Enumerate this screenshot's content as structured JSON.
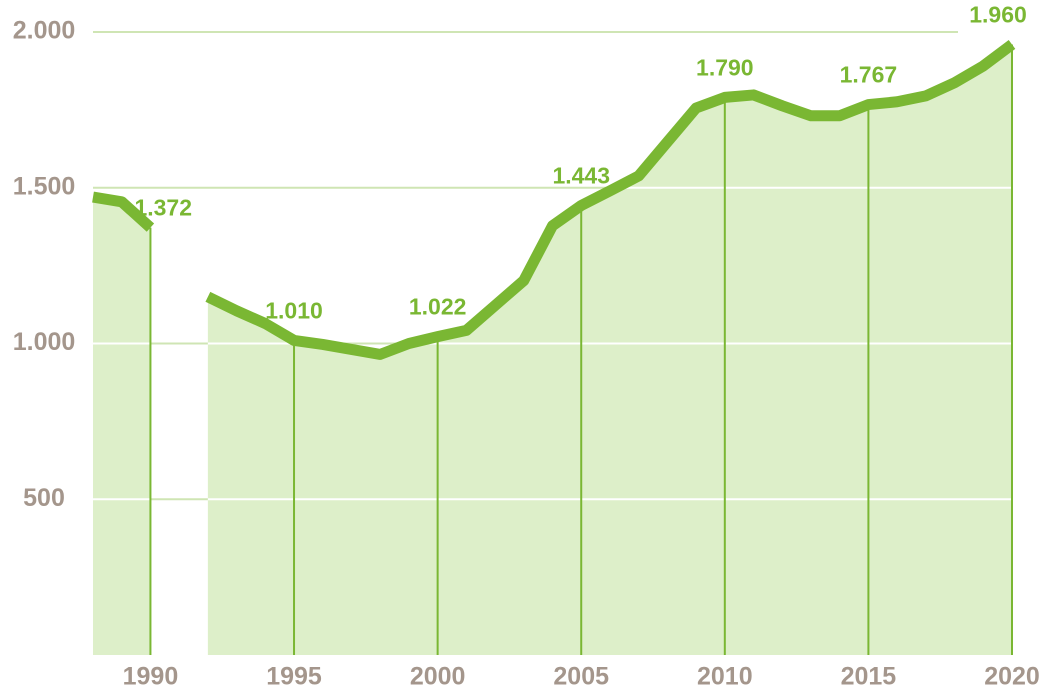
{
  "chart_data": {
    "type": "line",
    "x": [
      1988,
      1989,
      1990,
      1991,
      1992,
      1993,
      1994,
      1995,
      1996,
      1997,
      1998,
      1999,
      2000,
      2001,
      2002,
      2003,
      2004,
      2005,
      2006,
      2007,
      2008,
      2009,
      2010,
      2011,
      2012,
      2013,
      2014,
      2015,
      2016,
      2017,
      2018,
      2019,
      2020
    ],
    "series": [
      {
        "color": "#7ab733",
        "values": [
          1470,
          1455,
          1372,
          null,
          1150,
          1105,
          1064,
          1010,
          997,
          981,
          965,
          1000,
          1022,
          1042,
          1122,
          1202,
          1378,
          1443,
          1490,
          1538,
          1647,
          1756,
          1790,
          1798,
          1763,
          1731,
          1731,
          1767,
          1776,
          1795,
          1837,
          1891,
          1960
        ],
        "value_labels": [
          null,
          null,
          "1.372",
          null,
          null,
          null,
          null,
          "1.010",
          null,
          null,
          null,
          null,
          "1.022",
          null,
          null,
          null,
          null,
          "1.443",
          null,
          null,
          null,
          null,
          "1.790",
          null,
          null,
          null,
          null,
          "1.767",
          null,
          null,
          null,
          null,
          "1.960"
        ]
      }
    ],
    "area_color": "#ddefc9",
    "xlim": [
      1988,
      2020
    ],
    "xticks": [
      1990,
      1995,
      2000,
      2005,
      2010,
      2015,
      2020
    ],
    "ylim": [
      0,
      2000
    ],
    "yticks": [
      {
        "value": 2000,
        "label": "2.000"
      },
      {
        "value": 1500,
        "label": "1.500"
      },
      {
        "value": 1000,
        "label": "1.000"
      },
      500
    ],
    "grid": true
  }
}
